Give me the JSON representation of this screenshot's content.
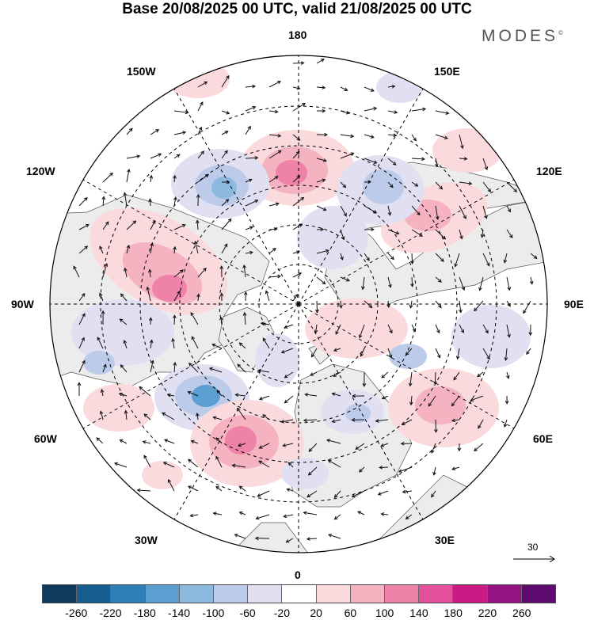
{
  "title": "Base 20/08/2025 00 UTC, valid 21/08/2025 00 UTC",
  "brand": "MODES",
  "brand_mark": "©",
  "meridian_labels": {
    "top": "180",
    "bottom": "0",
    "left": "90W",
    "right": "90E",
    "upper_left_1": "150W",
    "upper_left_2": "120W",
    "upper_right_1": "150E",
    "upper_right_2": "120E",
    "lower_left_1": "60W",
    "lower_left_2": "30W",
    "lower_right_1": "60E",
    "lower_right_2": "30E"
  },
  "wind_scale_label": "30",
  "colorbar": {
    "ticks": [
      "-260",
      "-220",
      "-180",
      "-140",
      "-100",
      "-60",
      "-20",
      "20",
      "60",
      "100",
      "140",
      "180",
      "220",
      "260"
    ],
    "colors": [
      "#0f3a5b",
      "#155e8f",
      "#2f7fb8",
      "#5a9fcf",
      "#8eb9df",
      "#bdcbea",
      "#e1e0f2",
      "#ffffff",
      "#fadadd",
      "#f5b3c1",
      "#ef82a8",
      "#e3519a",
      "#c81b84",
      "#951283",
      "#5e0a6e"
    ]
  },
  "palette": {
    "land": "#ececec",
    "ocean": "#ffffff",
    "grid": "#000000"
  },
  "anomalies": [
    {
      "name": "north-pacific-high",
      "value": 140
    },
    {
      "name": "bering-low",
      "value": -140
    },
    {
      "name": "alaska-canada-high",
      "value": 120
    },
    {
      "name": "labrador-low",
      "value": -140
    },
    {
      "name": "north-atlantic-high",
      "value": 140
    },
    {
      "name": "siberia-high",
      "value": 100
    },
    {
      "name": "east-siberia-low",
      "value": -100
    },
    {
      "name": "central-asia-high",
      "value": 60
    }
  ]
}
